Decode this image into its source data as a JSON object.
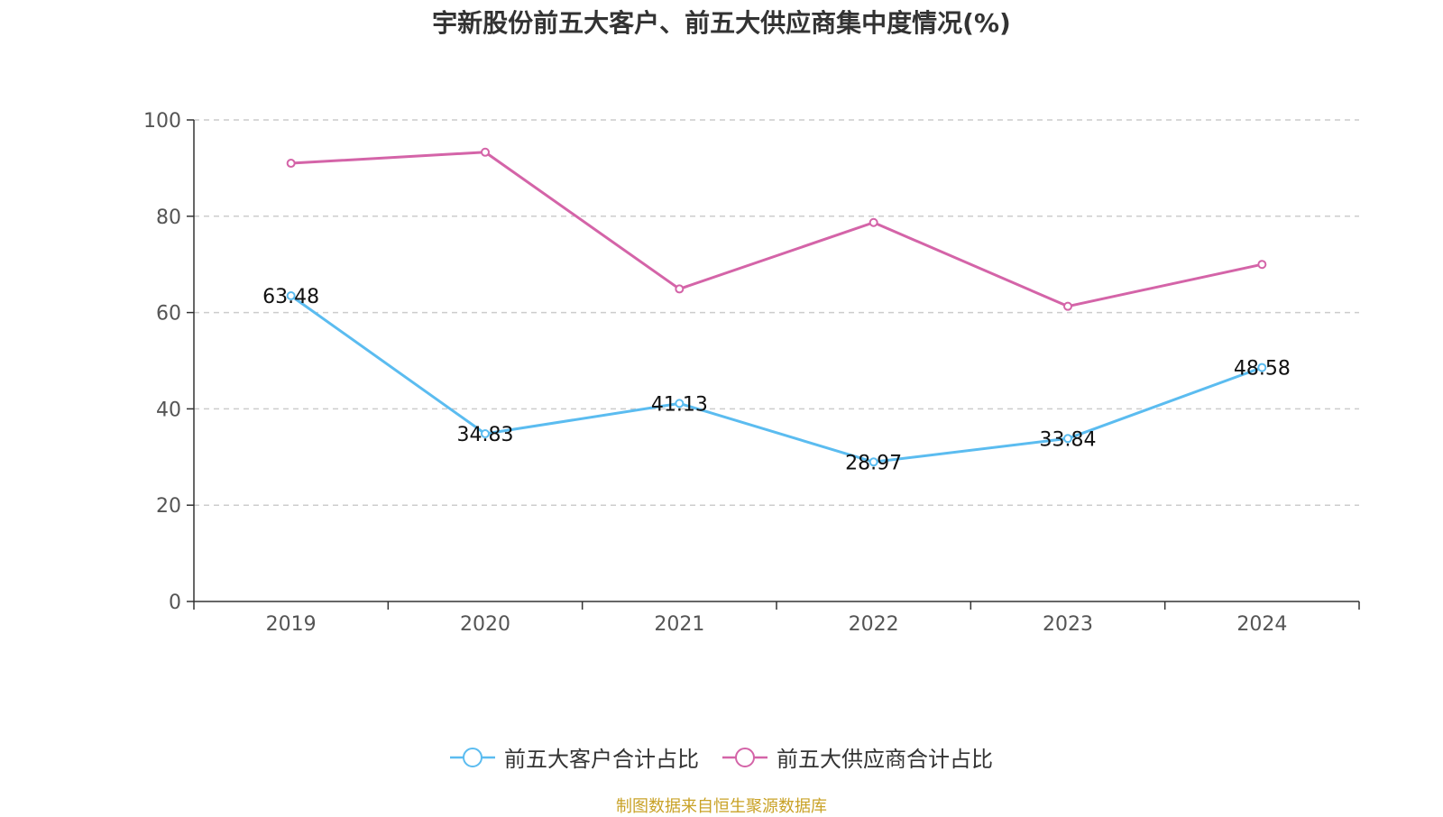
{
  "colors": {
    "customers": "#5bbcf0",
    "suppliers": "#d464a8"
  },
  "footer": {
    "source": "制图数据来自恒生聚源数据库"
  },
  "chart_data": {
    "type": "line",
    "title": "宇新股份前五大客户、前五大供应商集中度情况(%)",
    "categories": [
      "2019",
      "2020",
      "2021",
      "2022",
      "2023",
      "2024"
    ],
    "ylim": [
      0,
      100
    ],
    "yticks": [
      0,
      20,
      40,
      60,
      80,
      100
    ],
    "grid": true,
    "legend_position": "bottom",
    "series": [
      {
        "name": "前五大客户合计占比",
        "values": [
          63.48,
          34.83,
          41.13,
          28.97,
          33.84,
          48.58
        ],
        "labels": [
          "63.48",
          "34.83",
          "41.13",
          "28.97",
          "33.84",
          "48.58"
        ]
      },
      {
        "name": "前五大供应商合计占比",
        "values": [
          91.0,
          93.3,
          64.9,
          78.7,
          61.3,
          70.0
        ]
      }
    ]
  }
}
